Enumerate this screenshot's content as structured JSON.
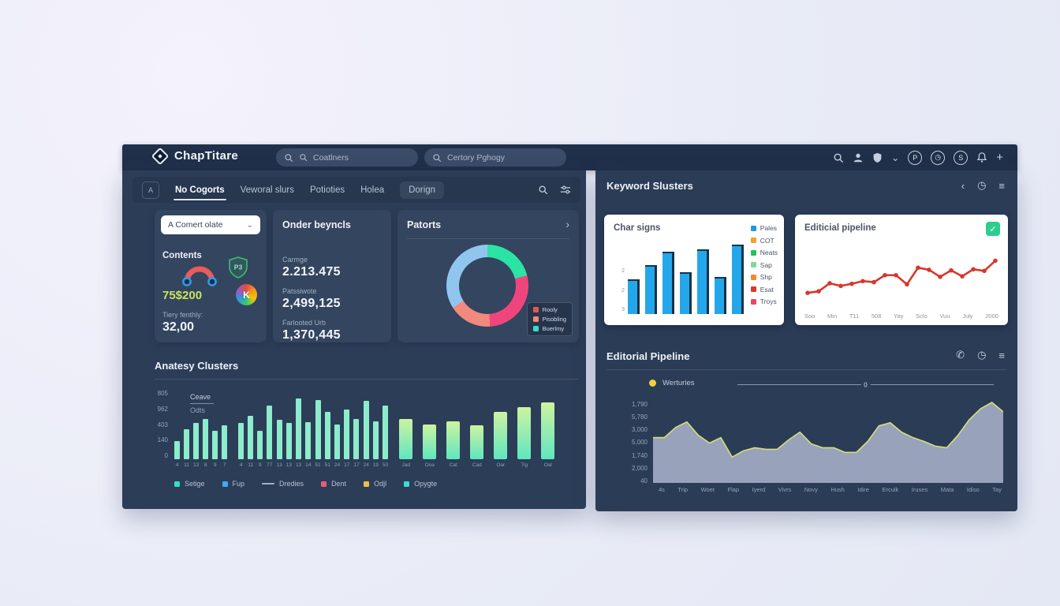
{
  "header": {
    "app_title": "ChapTitare",
    "search_primary": {
      "placeholder": "Coatlners"
    },
    "search_secondary": {
      "placeholder": "Certory Pghogy"
    },
    "badge_p": "P",
    "badge_s": "S"
  },
  "icons": {
    "clock": "◷",
    "chevron_down": "⌄",
    "plus": "+",
    "back": "‹",
    "menu": "≡",
    "phone": "✆",
    "donut_chevron": "›",
    "check": "✓",
    "dropdown_chevron": "⌄"
  },
  "left_panel": {
    "toolbar": {
      "icon_button": "A",
      "tabs": [
        {
          "label": "No Cogorts",
          "active": true,
          "pill": false
        },
        {
          "label": "Veworal slurs",
          "active": false,
          "pill": false
        },
        {
          "label": "Potioties",
          "active": false,
          "pill": false
        },
        {
          "label": "Holea",
          "active": false,
          "pill": false
        },
        {
          "label": "Dorign",
          "active": false,
          "pill": true
        }
      ]
    },
    "summary": {
      "dropdown_value": "A Comert olate",
      "contents_label": "Contents",
      "shield_badge": "P3",
      "highlight_value": "75$200",
      "k_badge": "K",
      "metric_label": "Tiery fenthly:",
      "metric_value": "32,00"
    },
    "order_card": {
      "title": "Onder beyncls",
      "rows": [
        {
          "label": "Carmge",
          "value": "2.213.475"
        },
        {
          "label": "Patssiwote",
          "value": "2,499,125"
        },
        {
          "label": "Farlooted Urb",
          "value": "1,370,445"
        }
      ]
    },
    "donut_card": {
      "title": "Patorts",
      "segments": [
        {
          "label": "teal",
          "value": 21,
          "color": "#2be3a4"
        },
        {
          "label": "pink",
          "value": 28,
          "color": "#f0457c"
        },
        {
          "label": "salmon",
          "value": 17,
          "color": "#f2897e"
        },
        {
          "label": "blue",
          "value": 34,
          "color": "#90c6ee"
        }
      ],
      "legend": [
        {
          "label": "Rooly",
          "color": "#e4584f"
        },
        {
          "label": "Pisobling",
          "color": "#f2897e"
        },
        {
          "label": "Buerlmy",
          "color": "#35dfc4"
        }
      ]
    },
    "clusters": {
      "title": "Anatesy Clusters",
      "mini_legend": [
        "Ceave",
        "Odts"
      ],
      "y_ticks": [
        "805",
        "962",
        "403",
        "140",
        "0"
      ],
      "ymax": 805,
      "groups": [
        {
          "style": "thin",
          "values": [
            210,
            345,
            420,
            470,
            330,
            390
          ],
          "labels": [
            "4",
            "11",
            "13",
            "8",
            "9",
            "7"
          ]
        },
        {
          "style": "thin",
          "values": [
            420,
            500,
            330,
            620,
            460,
            420,
            700,
            430,
            690,
            550,
            400,
            580,
            470,
            680,
            440,
            620
          ],
          "labels": [
            "4",
            "11",
            "9",
            "77",
            "13",
            "13",
            "13",
            "14",
            "51",
            "51",
            "24",
            "17",
            "17",
            "24",
            "19",
            "50"
          ]
        },
        {
          "style": "wide",
          "values": [
            470,
            400,
            440,
            390,
            550,
            600,
            660
          ],
          "labels": [
            "Jad",
            "Ooa",
            "Cat",
            "Cad",
            "Oar",
            "7ig",
            "Oal"
          ]
        }
      ],
      "legend": [
        {
          "label": "Setige",
          "color": "#35dfc4",
          "type": "square"
        },
        {
          "label": "Fup",
          "color": "#3fa9f5",
          "type": "square"
        },
        {
          "label": "Dredies",
          "color": "#9fb0c5",
          "type": "line"
        },
        {
          "label": "Dent",
          "color": "#e85c77",
          "type": "square"
        },
        {
          "label": "Odjl",
          "color": "#f0c043",
          "type": "square"
        },
        {
          "label": "Opygte",
          "color": "#35e0d0",
          "type": "square"
        }
      ]
    }
  },
  "right_panel": {
    "title": "Keyword Slusters",
    "bar_card": {
      "title": "Char signs",
      "bar_color": "#24a7ea",
      "ymax": 110,
      "values": [
        52,
        72,
        93,
        62,
        96,
        55,
        103
      ],
      "y_ticks": [
        "2",
        "2",
        "3"
      ],
      "legend": [
        {
          "label": "Pales",
          "color": "#2196e3"
        },
        {
          "label": "COT",
          "color": "#f0a132"
        },
        {
          "label": "Neats",
          "color": "#27c05a"
        },
        {
          "label": "Sap",
          "color": "#7fd99a"
        },
        {
          "label": "Shp",
          "color": "#f08a32"
        },
        {
          "label": "Esat",
          "color": "#d93a2b"
        },
        {
          "label": "Troys",
          "color": "#e8485f"
        }
      ]
    },
    "line_card": {
      "title": "Editicial pipeline",
      "line_color": "#d7372c",
      "values": [
        10,
        13,
        28,
        23,
        27,
        32,
        30,
        43,
        43,
        26,
        57,
        53,
        40,
        52,
        41,
        54,
        51,
        70
      ],
      "x_ticks": [
        "Soo",
        "Min",
        "T11",
        "508",
        "Yay",
        "Sclo",
        "Vuu",
        "July",
        "2000"
      ]
    },
    "pipeline": {
      "title": "Editorial Pipeline",
      "legend_label": "Werturies",
      "legend_color": "#f4d03f",
      "slider_value": "0",
      "y_ticks": [
        "1,790",
        "5,780",
        "3,000",
        "5,000",
        "1,740",
        "2,000",
        "40"
      ],
      "x_ticks": [
        "4s",
        "Trip",
        "Woet",
        "Flap",
        "Iyerd",
        "Vivrs",
        "Novy",
        "Hush",
        "Idire",
        "Erculk",
        "Iruses",
        "Mata",
        "Idiso",
        "Tay"
      ],
      "fill_color": "#a9b0ca",
      "line_color": "#d4de7a",
      "values": [
        55,
        55,
        68,
        75,
        58,
        48,
        55,
        30,
        38,
        42,
        40,
        40,
        52,
        62,
        47,
        42,
        42,
        36,
        36,
        50,
        70,
        74,
        62,
        55,
        50,
        44,
        42,
        58,
        78,
        92,
        100,
        88
      ]
    }
  }
}
